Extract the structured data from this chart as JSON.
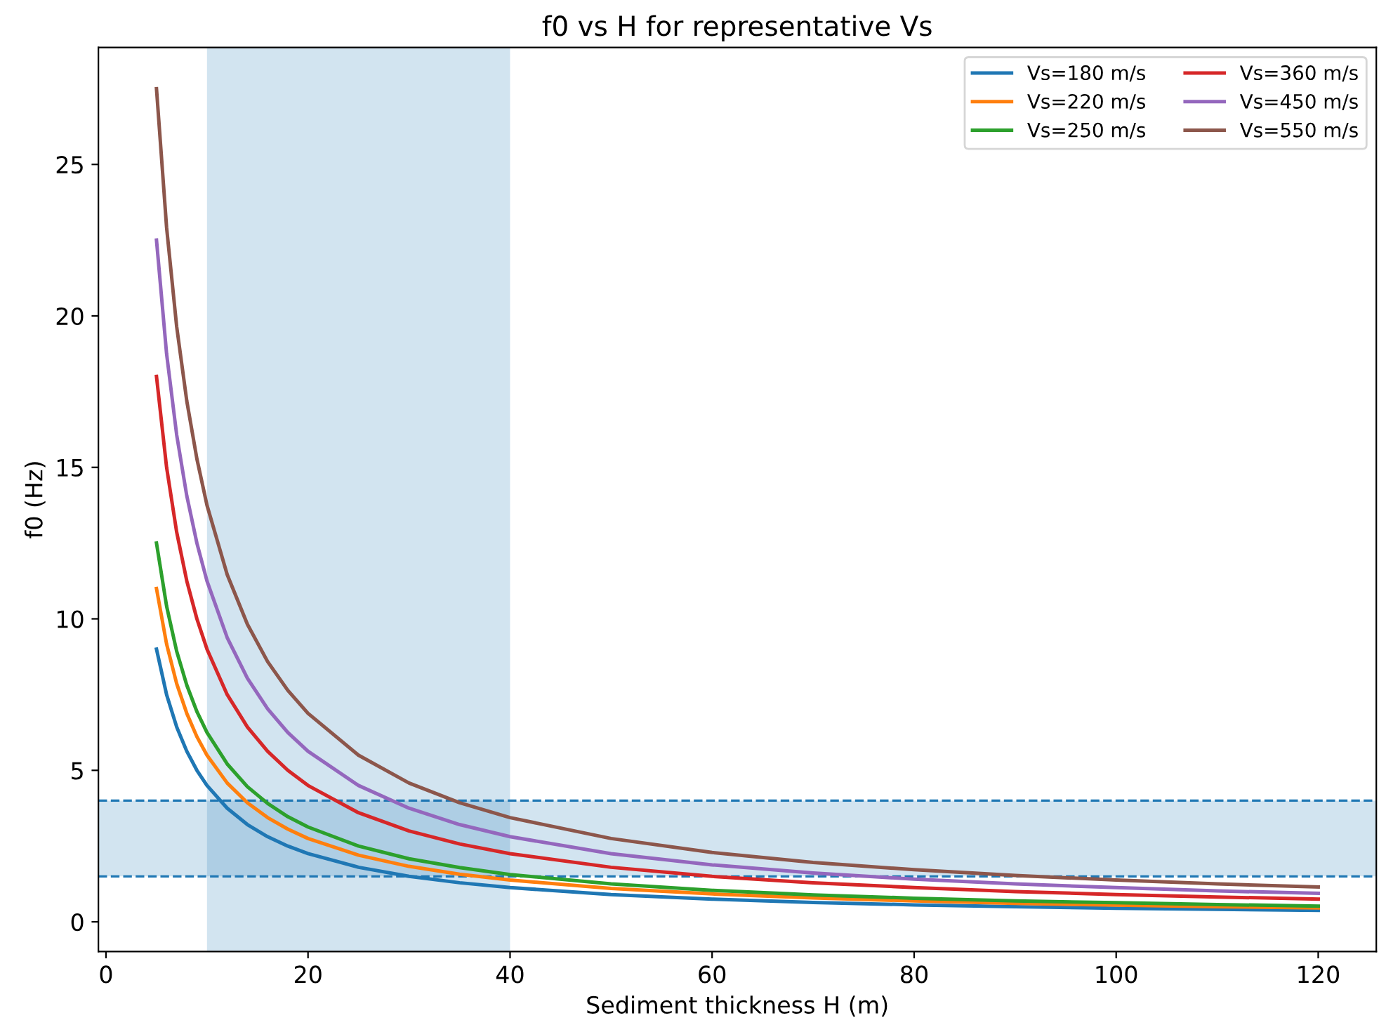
{
  "chart_data": {
    "type": "line",
    "title": "f0 vs H for representative Vs",
    "xlabel": "Sediment thickness H (m)",
    "ylabel": "f0 (Hz)",
    "x": [
      5,
      6,
      7,
      8,
      9,
      10,
      12,
      14,
      16,
      18,
      20,
      25,
      30,
      35,
      40,
      50,
      60,
      70,
      80,
      90,
      100,
      110,
      120
    ],
    "series": [
      {
        "name": "Vs=180 m/s",
        "color": "#1f77b4",
        "values": [
          9,
          7.5,
          6.43,
          5.63,
          5,
          4.5,
          3.75,
          3.21,
          2.81,
          2.5,
          2.25,
          1.8,
          1.5,
          1.29,
          1.13,
          0.9,
          0.75,
          0.64,
          0.56,
          0.5,
          0.45,
          0.41,
          0.38
        ]
      },
      {
        "name": "Vs=220 m/s",
        "color": "#ff7f0e",
        "values": [
          11,
          9.17,
          7.86,
          6.88,
          6.11,
          5.5,
          4.58,
          3.93,
          3.44,
          3.06,
          2.75,
          2.2,
          1.83,
          1.57,
          1.38,
          1.1,
          0.92,
          0.79,
          0.69,
          0.61,
          0.55,
          0.5,
          0.46
        ]
      },
      {
        "name": "Vs=250 m/s",
        "color": "#2ca02c",
        "values": [
          12.5,
          10.42,
          8.93,
          7.81,
          6.94,
          6.25,
          5.21,
          4.46,
          3.91,
          3.47,
          3.13,
          2.5,
          2.08,
          1.79,
          1.56,
          1.25,
          1.04,
          0.89,
          0.78,
          0.69,
          0.63,
          0.57,
          0.52
        ]
      },
      {
        "name": "Vs=360 m/s",
        "color": "#d62728",
        "values": [
          18,
          15,
          12.86,
          11.25,
          10,
          9,
          7.5,
          6.43,
          5.63,
          5,
          4.5,
          3.6,
          3,
          2.57,
          2.25,
          1.8,
          1.5,
          1.29,
          1.13,
          1,
          0.9,
          0.82,
          0.75
        ]
      },
      {
        "name": "Vs=450 m/s",
        "color": "#9467bd",
        "values": [
          22.5,
          18.75,
          16.07,
          14.06,
          12.5,
          11.25,
          9.38,
          8.04,
          7.03,
          6.25,
          5.63,
          4.5,
          3.75,
          3.21,
          2.81,
          2.25,
          1.88,
          1.61,
          1.41,
          1.25,
          1.13,
          1.02,
          0.94
        ]
      },
      {
        "name": "Vs=550 m/s",
        "color": "#8c564b",
        "values": [
          27.5,
          22.92,
          19.64,
          17.19,
          15.28,
          13.75,
          11.46,
          9.82,
          8.59,
          7.64,
          6.88,
          5.5,
          4.58,
          3.93,
          3.44,
          2.75,
          2.29,
          1.96,
          1.72,
          1.53,
          1.38,
          1.25,
          1.15
        ]
      }
    ],
    "xlim": [
      -0.75,
      125.75
    ],
    "xticks": [
      0,
      20,
      40,
      60,
      80,
      100,
      120
    ],
    "ylim": [
      -0.98,
      28.86
    ],
    "yticks": [
      0,
      5,
      10,
      15,
      20,
      25
    ],
    "bands": [
      {
        "axis": "x",
        "from": 10,
        "to": 40,
        "color": "#1f77b4"
      },
      {
        "axis": "y",
        "from": 1.5,
        "to": 4,
        "color": "#1f77b4"
      }
    ],
    "ref_lines": [
      {
        "axis": "y",
        "value": 1.5,
        "color": "#1f77b4",
        "line_style": "dashed"
      },
      {
        "axis": "y",
        "value": 4,
        "color": "#1f77b4",
        "line_style": "dashed"
      }
    ],
    "legend": "top right",
    "grid": false
  }
}
